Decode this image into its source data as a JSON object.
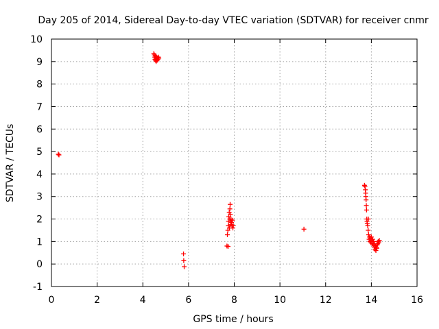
{
  "chart_data": {
    "type": "scatter",
    "title": "Day 205 of 2014, Sidereal Day-to-day VTEC variation (SDTVAR) for receiver cnmr",
    "xlabel": "GPS time / hours",
    "ylabel": "SDTVAR / TECUs",
    "xlim": [
      0,
      16
    ],
    "ylim": [
      -1,
      10
    ],
    "x_ticks": [
      0,
      2,
      4,
      6,
      8,
      10,
      12,
      14,
      16
    ],
    "y_ticks": [
      -1,
      0,
      1,
      2,
      3,
      4,
      5,
      6,
      7,
      8,
      9,
      10
    ],
    "x_tick_labels": [
      "0",
      "2",
      "4",
      "6",
      "8",
      "10",
      "12",
      "14",
      "16"
    ],
    "y_tick_labels": [
      "-1",
      "0",
      "1",
      "2",
      "3",
      "4",
      "5",
      "6",
      "7",
      "8",
      "9",
      "10"
    ],
    "grid": true,
    "marker": "plus",
    "color": "#ff0000",
    "series": [
      {
        "name": "SDTVAR",
        "points": [
          [
            0.3,
            4.88
          ],
          [
            0.33,
            4.85
          ],
          [
            4.48,
            9.35
          ],
          [
            4.5,
            9.3
          ],
          [
            4.52,
            9.2
          ],
          [
            4.53,
            9.1
          ],
          [
            4.55,
            9.25
          ],
          [
            4.56,
            9.05
          ],
          [
            4.57,
            9.15
          ],
          [
            4.58,
            9.0
          ],
          [
            4.6,
            9.2
          ],
          [
            4.61,
            9.1
          ],
          [
            4.62,
            9.05
          ],
          [
            4.64,
            9.15
          ],
          [
            4.66,
            9.1
          ],
          [
            4.68,
            9.2
          ],
          [
            4.7,
            9.15
          ],
          [
            5.78,
            0.45
          ],
          [
            5.79,
            0.15
          ],
          [
            5.81,
            -0.12
          ],
          [
            7.68,
            0.8
          ],
          [
            7.7,
            1.3
          ],
          [
            7.72,
            1.5
          ],
          [
            7.73,
            0.78
          ],
          [
            7.74,
            1.7
          ],
          [
            7.75,
            1.9
          ],
          [
            7.76,
            2.1
          ],
          [
            7.78,
            2.3
          ],
          [
            7.79,
            1.6
          ],
          [
            7.8,
            2.0
          ],
          [
            7.81,
            2.45
          ],
          [
            7.82,
            2.65
          ],
          [
            7.83,
            2.2
          ],
          [
            7.84,
            1.9
          ],
          [
            7.85,
            1.75
          ],
          [
            7.86,
            2.0
          ],
          [
            7.88,
            1.85
          ],
          [
            7.9,
            1.7
          ],
          [
            7.92,
            1.95
          ],
          [
            7.94,
            1.6
          ],
          [
            7.96,
            1.7
          ],
          [
            11.05,
            1.55
          ],
          [
            13.7,
            3.5
          ],
          [
            13.72,
            3.45
          ],
          [
            13.74,
            3.3
          ],
          [
            13.75,
            3.15
          ],
          [
            13.76,
            3.0
          ],
          [
            13.77,
            2.85
          ],
          [
            13.78,
            2.6
          ],
          [
            13.79,
            2.4
          ],
          [
            13.8,
            2.0
          ],
          [
            13.81,
            1.9
          ],
          [
            13.82,
            1.8
          ],
          [
            13.84,
            1.7
          ],
          [
            13.86,
            1.5
          ],
          [
            13.87,
            2.0
          ],
          [
            13.88,
            1.3
          ],
          [
            13.9,
            1.1
          ],
          [
            13.92,
            1.2
          ],
          [
            13.94,
            1.0
          ],
          [
            13.96,
            1.15
          ],
          [
            13.98,
            0.95
          ],
          [
            14.0,
            1.2
          ],
          [
            14.02,
            1.05
          ],
          [
            14.04,
            0.9
          ],
          [
            14.06,
            1.1
          ],
          [
            14.08,
            0.85
          ],
          [
            14.1,
            1.0
          ],
          [
            14.12,
            0.75
          ],
          [
            14.14,
            0.9
          ],
          [
            14.16,
            0.65
          ],
          [
            14.18,
            0.8
          ],
          [
            14.2,
            0.6
          ],
          [
            14.22,
            0.75
          ],
          [
            14.24,
            0.7
          ],
          [
            14.26,
            0.85
          ],
          [
            14.28,
            0.9
          ],
          [
            14.3,
            1.0
          ],
          [
            14.32,
            0.95
          ],
          [
            14.35,
            1.05
          ]
        ]
      }
    ]
  }
}
